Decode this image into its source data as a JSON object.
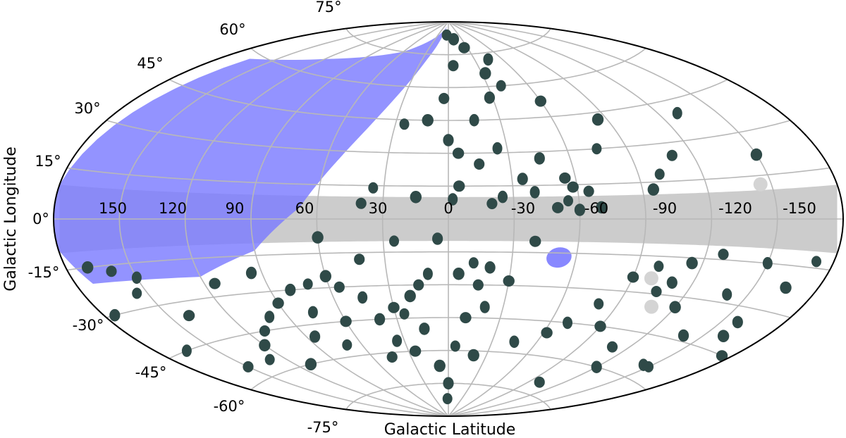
{
  "chart_data": {
    "type": "scatter",
    "projection": "aitoff",
    "xlabel": "Galactic Latitude",
    "ylabel": "Galactic Longitude",
    "x_ticks": [
      150,
      120,
      90,
      60,
      30,
      0,
      -30,
      -60,
      -90,
      -120,
      -150
    ],
    "y_ticks": [
      "75°",
      "60°",
      "45°",
      "30°",
      "15°",
      "0°",
      "-15°",
      "-30°",
      "-45°",
      "-60°",
      "-75°"
    ],
    "grid": true,
    "colors": {
      "points": "#2f4a48",
      "excluded_band": "#cccccc",
      "region": "#7b7bff",
      "grid": "#b8b8b8",
      "frame": "#000000"
    },
    "excluded_band_half_width_deg": 10,
    "region_fill": "semi-transparent blue",
    "blue_region": [
      [
        12,
        88
      ],
      [
        60,
        75
      ],
      [
        120,
        66
      ],
      [
        165,
        58
      ],
      [
        180,
        10
      ],
      [
        180,
        -9
      ],
      [
        172,
        -20
      ],
      [
        120,
        -22
      ],
      [
        90,
        -13
      ],
      [
        68,
        5
      ],
      [
        45,
        40
      ],
      [
        25,
        72
      ]
    ],
    "blue_spot": {
      "center": [
        -52,
        -17
      ],
      "radius_deg": 4.5
    },
    "gray_spots": [
      [
        -145,
        12
      ],
      [
        -99,
        -24
      ],
      [
        -108,
        -35
      ]
    ],
    "points": [
      [
        5,
        84
      ],
      [
        -12,
        82
      ],
      [
        -25,
        78
      ],
      [
        -45,
        72
      ],
      [
        -5,
        70
      ],
      [
        -33,
        66
      ],
      [
        -40,
        60
      ],
      [
        -28,
        55
      ],
      [
        -60,
        52
      ],
      [
        -15,
        45
      ],
      [
        3,
        55
      ],
      [
        12,
        45
      ],
      [
        25,
        43
      ],
      [
        0,
        36
      ],
      [
        -5,
        30
      ],
      [
        -25,
        32
      ],
      [
        -15,
        25
      ],
      [
        -85,
        42
      ],
      [
        -75,
        30
      ],
      [
        -45,
        27
      ],
      [
        -55,
        18
      ],
      [
        -130,
        40
      ],
      [
        -110,
        25
      ],
      [
        -150,
        22
      ],
      [
        -100,
        18
      ],
      [
        -35,
        18
      ],
      [
        -5,
        15
      ],
      [
        -40,
        12
      ],
      [
        -65,
        12
      ],
      [
        -95,
        12
      ],
      [
        -55,
        8
      ],
      [
        -60,
        4
      ],
      [
        -50,
        5
      ],
      [
        -25,
        10
      ],
      [
        40,
        7
      ],
      [
        15,
        10
      ],
      [
        35,
        14
      ],
      [
        -70,
        5
      ],
      [
        -58,
        14
      ],
      [
        -2,
        9
      ],
      [
        -20,
        7
      ],
      [
        60,
        -8
      ],
      [
        25,
        -10
      ],
      [
        5,
        -9
      ],
      [
        -40,
        -10
      ],
      [
        -150,
        -15
      ],
      [
        -128,
        -13
      ],
      [
        -115,
        -17
      ],
      [
        -100,
        -19
      ],
      [
        -110,
        -25
      ],
      [
        -90,
        -24
      ],
      [
        -140,
        -27
      ],
      [
        -105,
        -29
      ],
      [
        -120,
        -34
      ],
      [
        -80,
        -36
      ],
      [
        -140,
        -43
      ],
      [
        -90,
        -45
      ],
      [
        -70,
        -45
      ],
      [
        -110,
        -52
      ],
      [
        -160,
        -40
      ],
      [
        -150,
        -55
      ],
      [
        -120,
        -60
      ],
      [
        -62,
        -50
      ],
      [
        -45,
        -55
      ],
      [
        -100,
        -70
      ],
      [
        -20,
        -62
      ],
      [
        -5,
        -58
      ],
      [
        0,
        -75
      ],
      [
        -10,
        -45
      ],
      [
        -20,
        -40
      ],
      [
        -15,
        -30
      ],
      [
        -5,
        -25
      ],
      [
        -12,
        -20
      ],
      [
        -20,
        -22
      ],
      [
        -30,
        -28
      ],
      [
        10,
        -25
      ],
      [
        15,
        -30
      ],
      [
        20,
        -35
      ],
      [
        25,
        -43
      ],
      [
        15,
        -50
      ],
      [
        25,
        -60
      ],
      [
        35,
        -55
      ],
      [
        45,
        -62
      ],
      [
        8,
        -67
      ],
      [
        2,
        -82
      ],
      [
        40,
        -45
      ],
      [
        30,
        -40
      ],
      [
        45,
        -35
      ],
      [
        55,
        -30
      ],
      [
        60,
        -25
      ],
      [
        70,
        -28
      ],
      [
        80,
        -30
      ],
      [
        90,
        -35
      ],
      [
        100,
        -40
      ],
      [
        110,
        -45
      ],
      [
        120,
        -50
      ],
      [
        130,
        -55
      ],
      [
        95,
        -22
      ],
      [
        115,
        -25
      ],
      [
        150,
        -20
      ],
      [
        160,
        -17
      ],
      [
        170,
        -15
      ],
      [
        155,
        -25
      ],
      [
        175,
        -30
      ],
      [
        140,
        -35
      ],
      [
        165,
        -45
      ],
      [
        150,
        -55
      ],
      [
        110,
        -60
      ],
      [
        70,
        -55
      ],
      [
        85,
        -50
      ],
      [
        60,
        -45
      ],
      [
        75,
        -40
      ],
      [
        42,
        -18
      ],
      [
        -165,
        -22
      ],
      [
        -172,
        -13
      ],
      [
        -158,
        -35
      ],
      [
        -175,
        -45
      ],
      [
        -145,
        -55
      ]
    ]
  }
}
